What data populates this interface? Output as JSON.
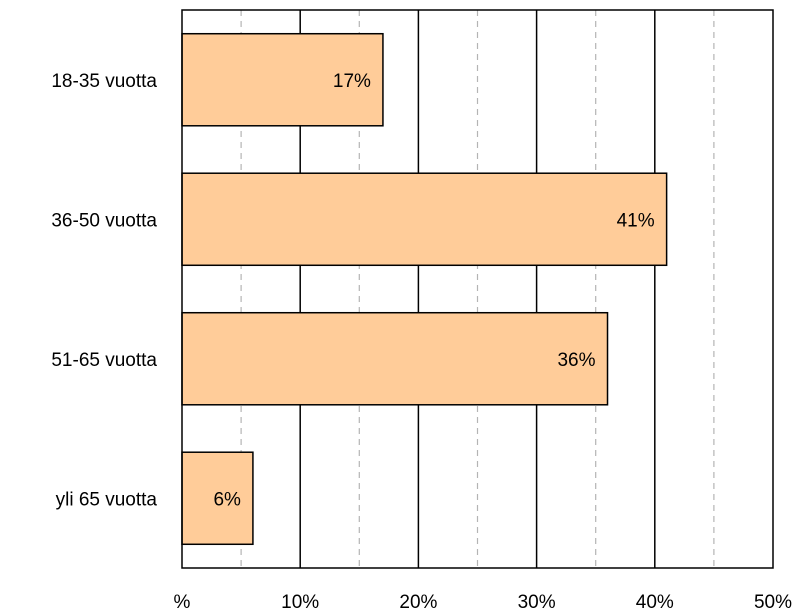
{
  "chart_data": {
    "type": "bar",
    "orientation": "horizontal",
    "categories": [
      "18-35 vuotta",
      "36-50 vuotta",
      "51-65 vuotta",
      "yli 65 vuotta"
    ],
    "values": [
      17,
      41,
      36,
      6
    ],
    "data_labels": [
      "17%",
      "41%",
      "36%",
      "6%"
    ],
    "x_ticks": [
      0,
      10,
      20,
      30,
      40,
      50
    ],
    "x_tick_labels": [
      "%",
      "10%",
      "20%",
      "30%",
      "40%",
      "50%"
    ],
    "xlim": [
      0,
      50
    ],
    "major_grid": true,
    "minor_grid": true,
    "minor_grid_style": "dashed",
    "legend": "none",
    "colors": {
      "bar_fill": "#FFCC99",
      "bar_stroke": "#000000",
      "major_grid": "#000000",
      "minor_grid": "#B4B4B4"
    }
  }
}
